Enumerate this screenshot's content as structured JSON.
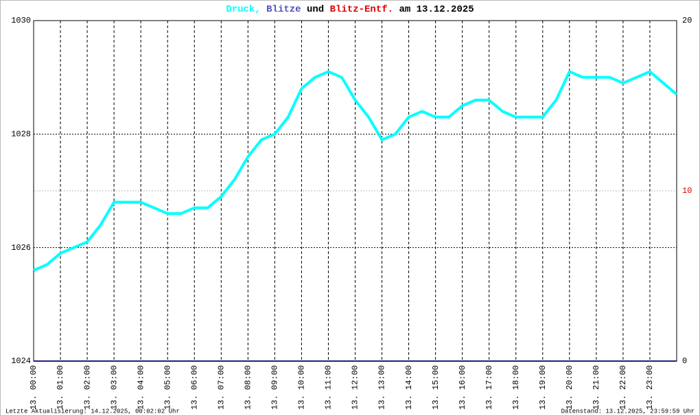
{
  "chart_data": {
    "type": "line",
    "title_parts": [
      {
        "text": "Druck,",
        "color": "#00ffff"
      },
      {
        "text": "Blitze",
        "color": "#5050c0"
      },
      {
        "text": "und",
        "color": "#000000"
      },
      {
        "text": "Blitz-Entf.",
        "color": "#e00000"
      },
      {
        "text": "am 13.12.2025",
        "color": "#000000"
      }
    ],
    "footer_left": "Letzte Aktualisierung: 14.12.2025, 00:02:02 Uhr",
    "footer_right": "Datenstand: 13.12.2025, 23:59:59 Uhr",
    "xlim": [
      0,
      24
    ],
    "xticks": [
      {
        "value": 0,
        "label": "13. 00:00"
      },
      {
        "value": 1,
        "label": "13. 01:00"
      },
      {
        "value": 2,
        "label": "13. 02:00"
      },
      {
        "value": 3,
        "label": "13. 03:00"
      },
      {
        "value": 4,
        "label": "13. 04:00"
      },
      {
        "value": 5,
        "label": "13. 05:00"
      },
      {
        "value": 6,
        "label": "13. 06:00"
      },
      {
        "value": 7,
        "label": "13. 07:00"
      },
      {
        "value": 8,
        "label": "13. 08:00"
      },
      {
        "value": 9,
        "label": "13. 09:00"
      },
      {
        "value": 10,
        "label": "13. 10:00"
      },
      {
        "value": 11,
        "label": "13. 11:00"
      },
      {
        "value": 12,
        "label": "13. 12:00"
      },
      {
        "value": 13,
        "label": "13. 13:00"
      },
      {
        "value": 14,
        "label": "13. 14:00"
      },
      {
        "value": 15,
        "label": "13. 15:00"
      },
      {
        "value": 16,
        "label": "13. 16:00"
      },
      {
        "value": 17,
        "label": "13. 17:00"
      },
      {
        "value": 18,
        "label": "13. 18:00"
      },
      {
        "value": 19,
        "label": "13. 19:00"
      },
      {
        "value": 20,
        "label": "13. 20:00"
      },
      {
        "value": 21,
        "label": "13. 21:00"
      },
      {
        "value": 22,
        "label": "13. 22:00"
      },
      {
        "value": 23,
        "label": "13. 23:00"
      }
    ],
    "ylim": [
      1024,
      1030
    ],
    "yticks": [
      1024,
      1026,
      1028,
      1030
    ],
    "y2lim": [
      0,
      20
    ],
    "y2ticks": [
      0,
      10,
      20
    ],
    "y2ticks_color": [
      "#000000",
      "#e00000",
      "#000000"
    ],
    "grid": true,
    "series": [
      {
        "name": "Druck",
        "color": "#00ffff",
        "x": [
          0,
          0.5,
          1,
          1.5,
          2,
          2.5,
          3,
          3.5,
          4,
          4.5,
          5,
          5.5,
          6,
          6.5,
          7,
          7.5,
          8,
          8.5,
          9,
          9.5,
          10,
          10.5,
          11,
          11.5,
          12,
          12.5,
          13,
          13.5,
          14,
          14.5,
          15,
          15.5,
          16,
          16.5,
          17,
          17.5,
          18,
          18.5,
          19,
          19.5,
          20,
          20.5,
          21,
          21.5,
          22,
          22.5,
          23,
          23.5,
          24
        ],
        "values": [
          1025.6,
          1025.7,
          1025.9,
          1026.0,
          1026.1,
          1026.4,
          1026.8,
          1026.8,
          1026.8,
          1026.7,
          1026.6,
          1026.6,
          1026.7,
          1026.7,
          1026.9,
          1027.2,
          1027.6,
          1027.9,
          1028.0,
          1028.3,
          1028.8,
          1029.0,
          1029.1,
          1029.0,
          1028.6,
          1028.3,
          1027.9,
          1028.0,
          1028.3,
          1028.4,
          1028.3,
          1028.3,
          1028.5,
          1028.6,
          1028.6,
          1028.4,
          1028.3,
          1028.3,
          1028.3,
          1028.6,
          1029.1,
          1029.0,
          1029.0,
          1029.0,
          1028.9,
          1029.0,
          1029.1,
          1028.9,
          1028.7
        ]
      },
      {
        "name": "Blitze",
        "color": "#202080",
        "axis": "y2",
        "x": [
          0,
          24
        ],
        "values": [
          0,
          0
        ]
      }
    ]
  }
}
